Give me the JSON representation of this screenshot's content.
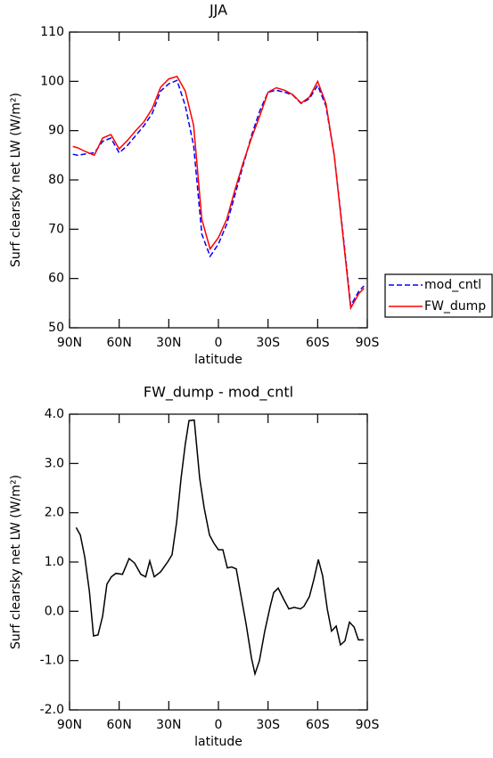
{
  "chart_data": [
    {
      "type": "line",
      "title": "JJA",
      "xlabel": "latitude",
      "ylabel": "Surf clearsky net LW (W/m²)",
      "x": [
        88,
        85,
        80,
        75,
        70,
        65,
        60,
        55,
        50,
        45,
        40,
        35,
        30,
        25,
        20,
        15,
        10,
        5,
        0,
        -5,
        -10,
        -15,
        -20,
        -25,
        -30,
        -35,
        -40,
        -45,
        -50,
        -55,
        -60,
        -65,
        -70,
        -75,
        -80,
        -85,
        -88
      ],
      "series": [
        {
          "name": "mod_cntl",
          "color": "#0000ff",
          "dash": true,
          "values": [
            85.2,
            85,
            85.3,
            85.5,
            87.8,
            88.5,
            85.5,
            87,
            89,
            91,
            93.5,
            98,
            99.5,
            100.2,
            95,
            87,
            69,
            64.5,
            67,
            71,
            77,
            83,
            89,
            94,
            97.8,
            98.2,
            97.8,
            97.2,
            95.5,
            96.5,
            99.2,
            95,
            85,
            70,
            54.5,
            57.5,
            58.5
          ]
        },
        {
          "name": "FW_dump",
          "color": "#ff0000",
          "dash": false,
          "values": [
            86.8,
            86.5,
            85.7,
            85,
            88.5,
            89.2,
            86.3,
            88,
            90,
            91.8,
            94.5,
            98.8,
            100.5,
            101,
            98,
            91,
            72,
            66,
            68.3,
            72,
            78,
            83.5,
            88.5,
            93,
            97.8,
            98.7,
            98.2,
            97.3,
            95.6,
            96.8,
            100,
            95.5,
            85,
            69.5,
            54,
            57,
            58
          ]
        }
      ],
      "xlim": [
        90,
        -90
      ],
      "xticks": [
        {
          "value": 90,
          "label": "90N"
        },
        {
          "value": 60,
          "label": "60N"
        },
        {
          "value": 30,
          "label": "30N"
        },
        0,
        {
          "value": -30,
          "label": "30S"
        },
        {
          "value": -60,
          "label": "60S"
        },
        {
          "value": -90,
          "label": "90S"
        }
      ],
      "ylim": [
        50,
        110
      ],
      "yticks": [
        50,
        60,
        70,
        80,
        90,
        100,
        110
      ],
      "legend": "outside-right"
    },
    {
      "type": "line",
      "title": "FW_dump - mod_cntl",
      "xlabel": "latitude",
      "ylabel": "Surf clearsky net LW (W/m²)",
      "x": [
        86,
        83.5,
        80.8,
        78,
        75.5,
        72.8,
        70,
        67.4,
        64.7,
        62,
        58,
        54,
        50.7,
        46.9,
        44,
        41.5,
        38.8,
        35,
        30.7,
        28,
        25.3,
        22.6,
        20,
        17.8,
        14.6,
        11.3,
        8.6,
        5.4,
        2.7,
        0,
        -2.7,
        -5.4,
        -8,
        -10.8,
        -13.5,
        -16.7,
        -20,
        -22.1,
        -24.8,
        -28,
        -31.3,
        -33.4,
        -36.1,
        -39.4,
        -42.6,
        -45.8,
        -49.6,
        -51.7,
        -55,
        -57.7,
        -60.4,
        -63,
        -65.8,
        -68.4,
        -71.2,
        -73.8,
        -76.5,
        -79.2,
        -82,
        -84.6,
        -87.8
      ],
      "series": [
        {
          "name": null,
          "color": "#000000",
          "dash": false,
          "values": [
            1.7,
            1.55,
            1.1,
            0.4,
            -0.5,
            -0.48,
            -0.1,
            0.55,
            0.7,
            0.77,
            0.75,
            1.07,
            0.98,
            0.75,
            0.7,
            1.02,
            0.7,
            0.8,
            1.0,
            1.15,
            1.8,
            2.7,
            3.4,
            3.87,
            3.88,
            2.7,
            2.1,
            1.55,
            1.38,
            1.25,
            1.25,
            0.88,
            0.9,
            0.86,
            0.35,
            -0.25,
            -0.95,
            -1.27,
            -1.0,
            -0.4,
            0.1,
            0.38,
            0.47,
            0.25,
            0.05,
            0.08,
            0.05,
            0.1,
            0.3,
            0.65,
            1.05,
            0.72,
            0.05,
            -0.4,
            -0.3,
            -0.68,
            -0.6,
            -0.22,
            -0.32,
            -0.58,
            -0.58
          ]
        }
      ],
      "xlim": [
        90,
        -90
      ],
      "xticks": [
        {
          "value": 90,
          "label": "90N"
        },
        {
          "value": 60,
          "label": "60N"
        },
        {
          "value": 30,
          "label": "30N"
        },
        0,
        {
          "value": -30,
          "label": "30S"
        },
        {
          "value": -60,
          "label": "60S"
        },
        {
          "value": -90,
          "label": "90S"
        }
      ],
      "ylim": [
        -2,
        4
      ],
      "yticks": [
        {
          "value": -2,
          "label": "-2.0"
        },
        {
          "value": -1,
          "label": "-1.0"
        },
        {
          "value": 0,
          "label": "0.0"
        },
        {
          "value": 1,
          "label": "1.0"
        },
        {
          "value": 2,
          "label": "2.0"
        },
        {
          "value": 3,
          "label": "3.0"
        },
        {
          "value": 4,
          "label": "4.0"
        }
      ]
    }
  ]
}
